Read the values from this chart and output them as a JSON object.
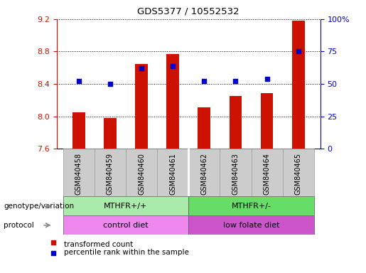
{
  "title": "GDS5377 / 10552532",
  "samples": [
    "GSM840458",
    "GSM840459",
    "GSM840460",
    "GSM840461",
    "GSM840462",
    "GSM840463",
    "GSM840464",
    "GSM840465"
  ],
  "bar_values": [
    8.05,
    7.98,
    8.65,
    8.77,
    8.11,
    8.25,
    8.29,
    9.18
  ],
  "bar_base": 7.6,
  "percentile_values": [
    52,
    50,
    62,
    64,
    52,
    52,
    54,
    75
  ],
  "ylim_left": [
    7.6,
    9.2
  ],
  "ylim_right": [
    0,
    100
  ],
  "yticks_left": [
    7.6,
    8.0,
    8.4,
    8.8,
    9.2
  ],
  "yticks_right": [
    0,
    25,
    50,
    75,
    100
  ],
  "bar_color": "#cc1100",
  "percentile_color": "#0000cc",
  "genotype_groups": [
    {
      "label": "MTHFR+/+",
      "start": 0,
      "end": 4,
      "color": "#aaeaaa"
    },
    {
      "label": "MTHFR+/-",
      "start": 4,
      "end": 8,
      "color": "#66dd66"
    }
  ],
  "protocol_groups": [
    {
      "label": "control diet",
      "start": 0,
      "end": 4,
      "color": "#ee88ee"
    },
    {
      "label": "low folate diet",
      "start": 4,
      "end": 8,
      "color": "#cc55cc"
    }
  ],
  "genotype_label": "genotype/variation",
  "protocol_label": "protocol",
  "legend_bar_label": "transformed count",
  "legend_pct_label": "percentile rank within the sample",
  "tick_bg_color": "#cccccc",
  "bar_width": 0.4
}
